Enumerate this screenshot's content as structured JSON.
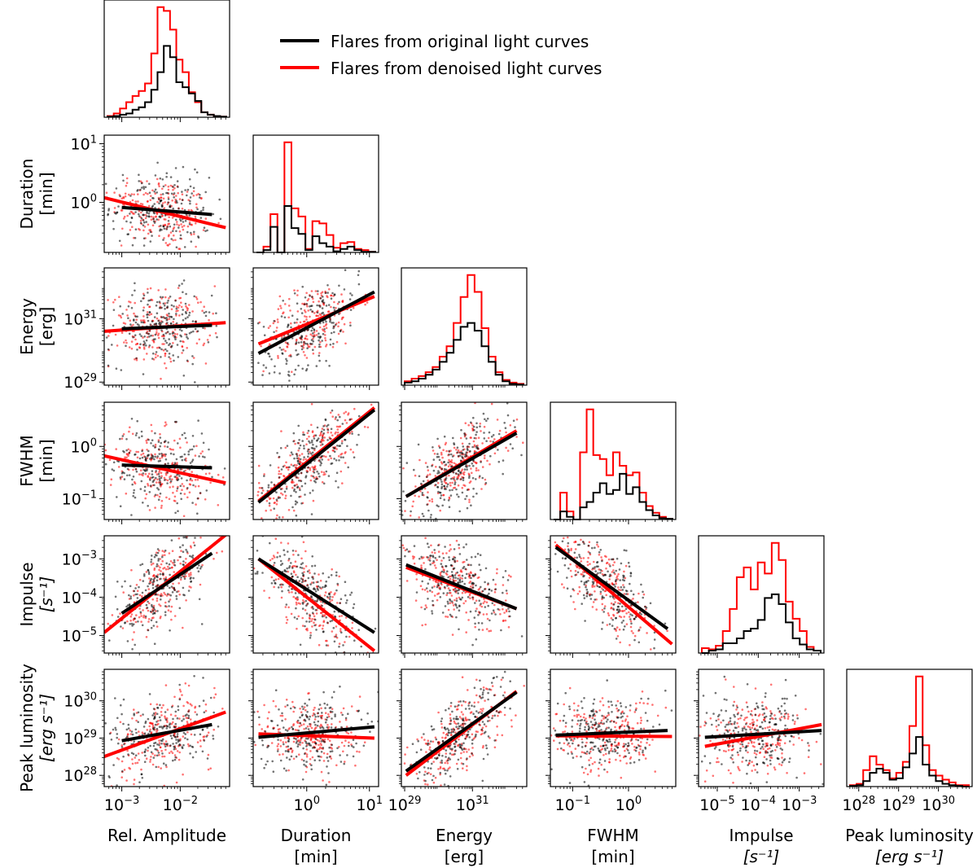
{
  "legend": {
    "placement": "top-right",
    "entries": [
      {
        "label": "Flares from original light curves",
        "color": "#000000"
      },
      {
        "label": "Flares from denoised light curves",
        "color": "#ff0000"
      }
    ]
  },
  "colors": {
    "original": "#000000",
    "denoised": "#ff0000",
    "frame": "#000000"
  },
  "chart_data": {
    "type": "scatter",
    "layout": "corner",
    "variables": [
      {
        "key": "amp",
        "label": "Rel. Amplitude",
        "unit": "",
        "scale": "log",
        "range": [
          0.0005,
          0.07
        ],
        "ticks": [
          {
            "v": 0.001,
            "text": "10",
            "exp": "−3"
          },
          {
            "v": 0.01,
            "text": "10",
            "exp": "−2"
          }
        ]
      },
      {
        "key": "dur",
        "label": "Duration",
        "unit": "[min]",
        "scale": "log",
        "range": [
          0.14,
          14
        ],
        "ticks": [
          {
            "v": 1,
            "text": "10",
            "exp": "0"
          },
          {
            "v": 10,
            "text": "10",
            "exp": "1"
          }
        ]
      },
      {
        "key": "energy",
        "label": "Energy",
        "unit": "[erg]",
        "scale": "log",
        "range": [
          8e+28,
          4e+32
        ],
        "ticks": [
          {
            "v": 1e+29,
            "text": "10",
            "exp": "29"
          },
          {
            "v": 1e+31,
            "text": "10",
            "exp": "31"
          }
        ]
      },
      {
        "key": "fwhm",
        "label": "FWHM",
        "unit": "[min]",
        "scale": "log",
        "range": [
          0.04,
          7
        ],
        "ticks": [
          {
            "v": 0.1,
            "text": "10",
            "exp": "−1"
          },
          {
            "v": 1,
            "text": "10",
            "exp": "0"
          }
        ]
      },
      {
        "key": "impulse",
        "label": "Impulse",
        "unit": "[s⁻¹]",
        "unitItalic": true,
        "scale": "log",
        "range": [
          3.5e-06,
          0.004
        ],
        "ticks": [
          {
            "v": 1e-05,
            "text": "10",
            "exp": "−5"
          },
          {
            "v": 0.0001,
            "text": "10",
            "exp": "−4"
          },
          {
            "v": 0.001,
            "text": "10",
            "exp": "−3"
          }
        ]
      },
      {
        "key": "lum",
        "label": "Peak luminosity",
        "unit": "[erg s⁻¹]",
        "unitItalic": true,
        "scale": "log",
        "range": [
          5e+27,
          7e+30
        ],
        "ticks": [
          {
            "v": 1e+28,
            "text": "10",
            "exp": "28"
          },
          {
            "v": 1e+29,
            "text": "10",
            "exp": "29"
          },
          {
            "v": 1e+30,
            "text": "10",
            "exp": "30"
          }
        ]
      }
    ],
    "histograms": [
      {
        "var": "amp",
        "original": [
          0.5,
          1,
          2,
          3,
          6,
          8,
          12,
          22,
          36,
          57,
          48,
          28,
          24,
          19,
          13,
          4,
          2,
          1,
          0.5
        ],
        "denoised": [
          1,
          3,
          7,
          12,
          17,
          21,
          27,
          51,
          88,
          85,
          70,
          46,
          36,
          20,
          12,
          4,
          2,
          1,
          0.5
        ]
      },
      {
        "var": "dur",
        "original": [
          0,
          2,
          22,
          0,
          40,
          21,
          16,
          2,
          14,
          8,
          5,
          1,
          3,
          5,
          2,
          0.5,
          0.5
        ],
        "denoised": [
          0,
          5,
          33,
          0,
          95,
          38,
          31,
          3,
          27,
          25,
          15,
          4,
          8,
          9,
          3,
          2,
          0.5
        ]
      },
      {
        "var": "energy",
        "original": [
          2,
          3,
          5,
          8,
          12,
          18,
          25,
          35,
          45,
          48,
          42,
          30,
          18,
          8,
          3,
          1,
          0.5
        ],
        "denoised": [
          3,
          5,
          7,
          10,
          14,
          22,
          30,
          48,
          68,
          85,
          72,
          44,
          22,
          10,
          4,
          2,
          1
        ]
      },
      {
        "var": "fwhm",
        "original": [
          0,
          6,
          2,
          0,
          9,
          13,
          20,
          27,
          19,
          22,
          34,
          19,
          24,
          13,
          7,
          3,
          1,
          0.5
        ],
        "denoised": [
          0,
          20,
          6,
          0,
          50,
          82,
          48,
          45,
          33,
          50,
          40,
          33,
          35,
          20,
          10,
          5,
          2,
          0.5
        ]
      },
      {
        "var": "impulse",
        "original": [
          0,
          2,
          3,
          8,
          8,
          12,
          18,
          20,
          27,
          45,
          48,
          40,
          25,
          12,
          7,
          3,
          2
        ],
        "denoised": [
          4,
          3,
          6,
          18,
          36,
          62,
          70,
          52,
          74,
          65,
          90,
          76,
          42,
          28,
          18,
          5,
          2
        ]
      },
      {
        "var": "lum",
        "original": [
          0.5,
          1,
          4,
          10,
          13,
          10,
          5,
          6,
          14,
          24,
          36,
          16,
          8,
          4,
          2,
          1,
          0.5,
          0
        ],
        "denoised": [
          1,
          2,
          12,
          22,
          16,
          12,
          6,
          10,
          18,
          44,
          80,
          30,
          12,
          8,
          5,
          3,
          1,
          1
        ]
      }
    ],
    "fits": [
      {
        "x": "amp",
        "y": "dur",
        "original": {
          "x": [
            0.001,
            0.035
          ],
          "y": [
            0.82,
            0.62
          ]
        },
        "denoised": {
          "x": [
            0.0005,
            0.06
          ],
          "y": [
            1.2,
            0.37
          ]
        }
      },
      {
        "x": "amp",
        "y": "energy",
        "original": {
          "x": [
            0.001,
            0.035
          ],
          "y": [
            4.8e+30,
            6.2e+30
          ]
        },
        "denoised": {
          "x": [
            0.0005,
            0.06
          ],
          "y": [
            4e+30,
            7.5e+30
          ]
        }
      },
      {
        "x": "dur",
        "y": "energy",
        "original": {
          "x": [
            0.17,
            12
          ],
          "y": [
            8e+29,
            7e+31
          ]
        },
        "denoised": {
          "x": [
            0.17,
            12
          ],
          "y": [
            1.6e+30,
            5e+31
          ]
        }
      },
      {
        "x": "amp",
        "y": "fwhm",
        "original": {
          "x": [
            0.001,
            0.035
          ],
          "y": [
            0.44,
            0.39
          ]
        },
        "denoised": {
          "x": [
            0.0005,
            0.06
          ],
          "y": [
            0.66,
            0.2
          ]
        }
      },
      {
        "x": "dur",
        "y": "fwhm",
        "original": {
          "x": [
            0.17,
            12
          ],
          "y": [
            0.085,
            5
          ]
        },
        "denoised": {
          "x": [
            0.17,
            12
          ],
          "y": [
            0.09,
            5.5
          ]
        }
      },
      {
        "x": "energy",
        "y": "fwhm",
        "original": {
          "x": [
            1.1e+29,
            2e+32
          ],
          "y": [
            0.11,
            1.8
          ]
        },
        "denoised": {
          "x": [
            1.1e+29,
            2e+32
          ],
          "y": [
            0.11,
            2
          ]
        }
      },
      {
        "x": "amp",
        "y": "impulse",
        "original": {
          "x": [
            0.001,
            0.035
          ],
          "y": [
            3.8e-05,
            0.0014
          ]
        },
        "denoised": {
          "x": [
            0.0005,
            0.06
          ],
          "y": [
            1.2e-05,
            0.0042
          ]
        }
      },
      {
        "x": "dur",
        "y": "impulse",
        "original": {
          "x": [
            0.17,
            12
          ],
          "y": [
            0.001,
            1.2e-05
          ]
        },
        "denoised": {
          "x": [
            0.17,
            12
          ],
          "y": [
            0.001,
            4e-06
          ]
        }
      },
      {
        "x": "energy",
        "y": "impulse",
        "original": {
          "x": [
            1.1e+29,
            2e+32
          ],
          "y": [
            0.0007,
            5e-05
          ]
        },
        "denoised": {
          "x": [
            1.1e+29,
            2e+32
          ],
          "y": [
            0.0006,
            5e-05
          ]
        }
      },
      {
        "x": "fwhm",
        "y": "impulse",
        "original": {
          "x": [
            0.05,
            5
          ],
          "y": [
            0.002,
            1.5e-05
          ]
        },
        "denoised": {
          "x": [
            0.05,
            6
          ],
          "y": [
            0.0023,
            6e-06
          ]
        }
      },
      {
        "x": "amp",
        "y": "lum",
        "original": {
          "x": [
            0.001,
            0.035
          ],
          "y": [
            8.5e+28,
            2.3e+29
          ]
        },
        "denoised": {
          "x": [
            0.0005,
            0.06
          ],
          "y": [
            3.2e+28,
            5e+29
          ]
        }
      },
      {
        "x": "dur",
        "y": "lum",
        "original": {
          "x": [
            0.17,
            12
          ],
          "y": [
            1.05e+29,
            2e+29
          ]
        },
        "denoised": {
          "x": [
            0.17,
            12
          ],
          "y": [
            1.3e+29,
            1e+29
          ]
        }
      },
      {
        "x": "energy",
        "y": "lum",
        "original": {
          "x": [
            1.1e+29,
            2e+32
          ],
          "y": [
            1.3e+28,
            1.7e+30
          ]
        },
        "denoised": {
          "x": [
            1.1e+29,
            2e+32
          ],
          "y": [
            1e+28,
            1.8e+30
          ]
        }
      },
      {
        "x": "fwhm",
        "y": "lum",
        "original": {
          "x": [
            0.05,
            5
          ],
          "y": [
            1.2e+29,
            1.6e+29
          ]
        },
        "denoised": {
          "x": [
            0.05,
            6
          ],
          "y": [
            1.15e+29,
            1.1e+29
          ]
        }
      },
      {
        "x": "impulse",
        "y": "lum",
        "original": {
          "x": [
            5e-06,
            0.0035
          ],
          "y": [
            1.05e+29,
            1.6e+29
          ]
        },
        "denoised": {
          "x": [
            5e-06,
            0.0035
          ],
          "y": [
            6e+28,
            2.3e+29
          ]
        }
      }
    ],
    "scatter_note_points_per_series": 220
  }
}
